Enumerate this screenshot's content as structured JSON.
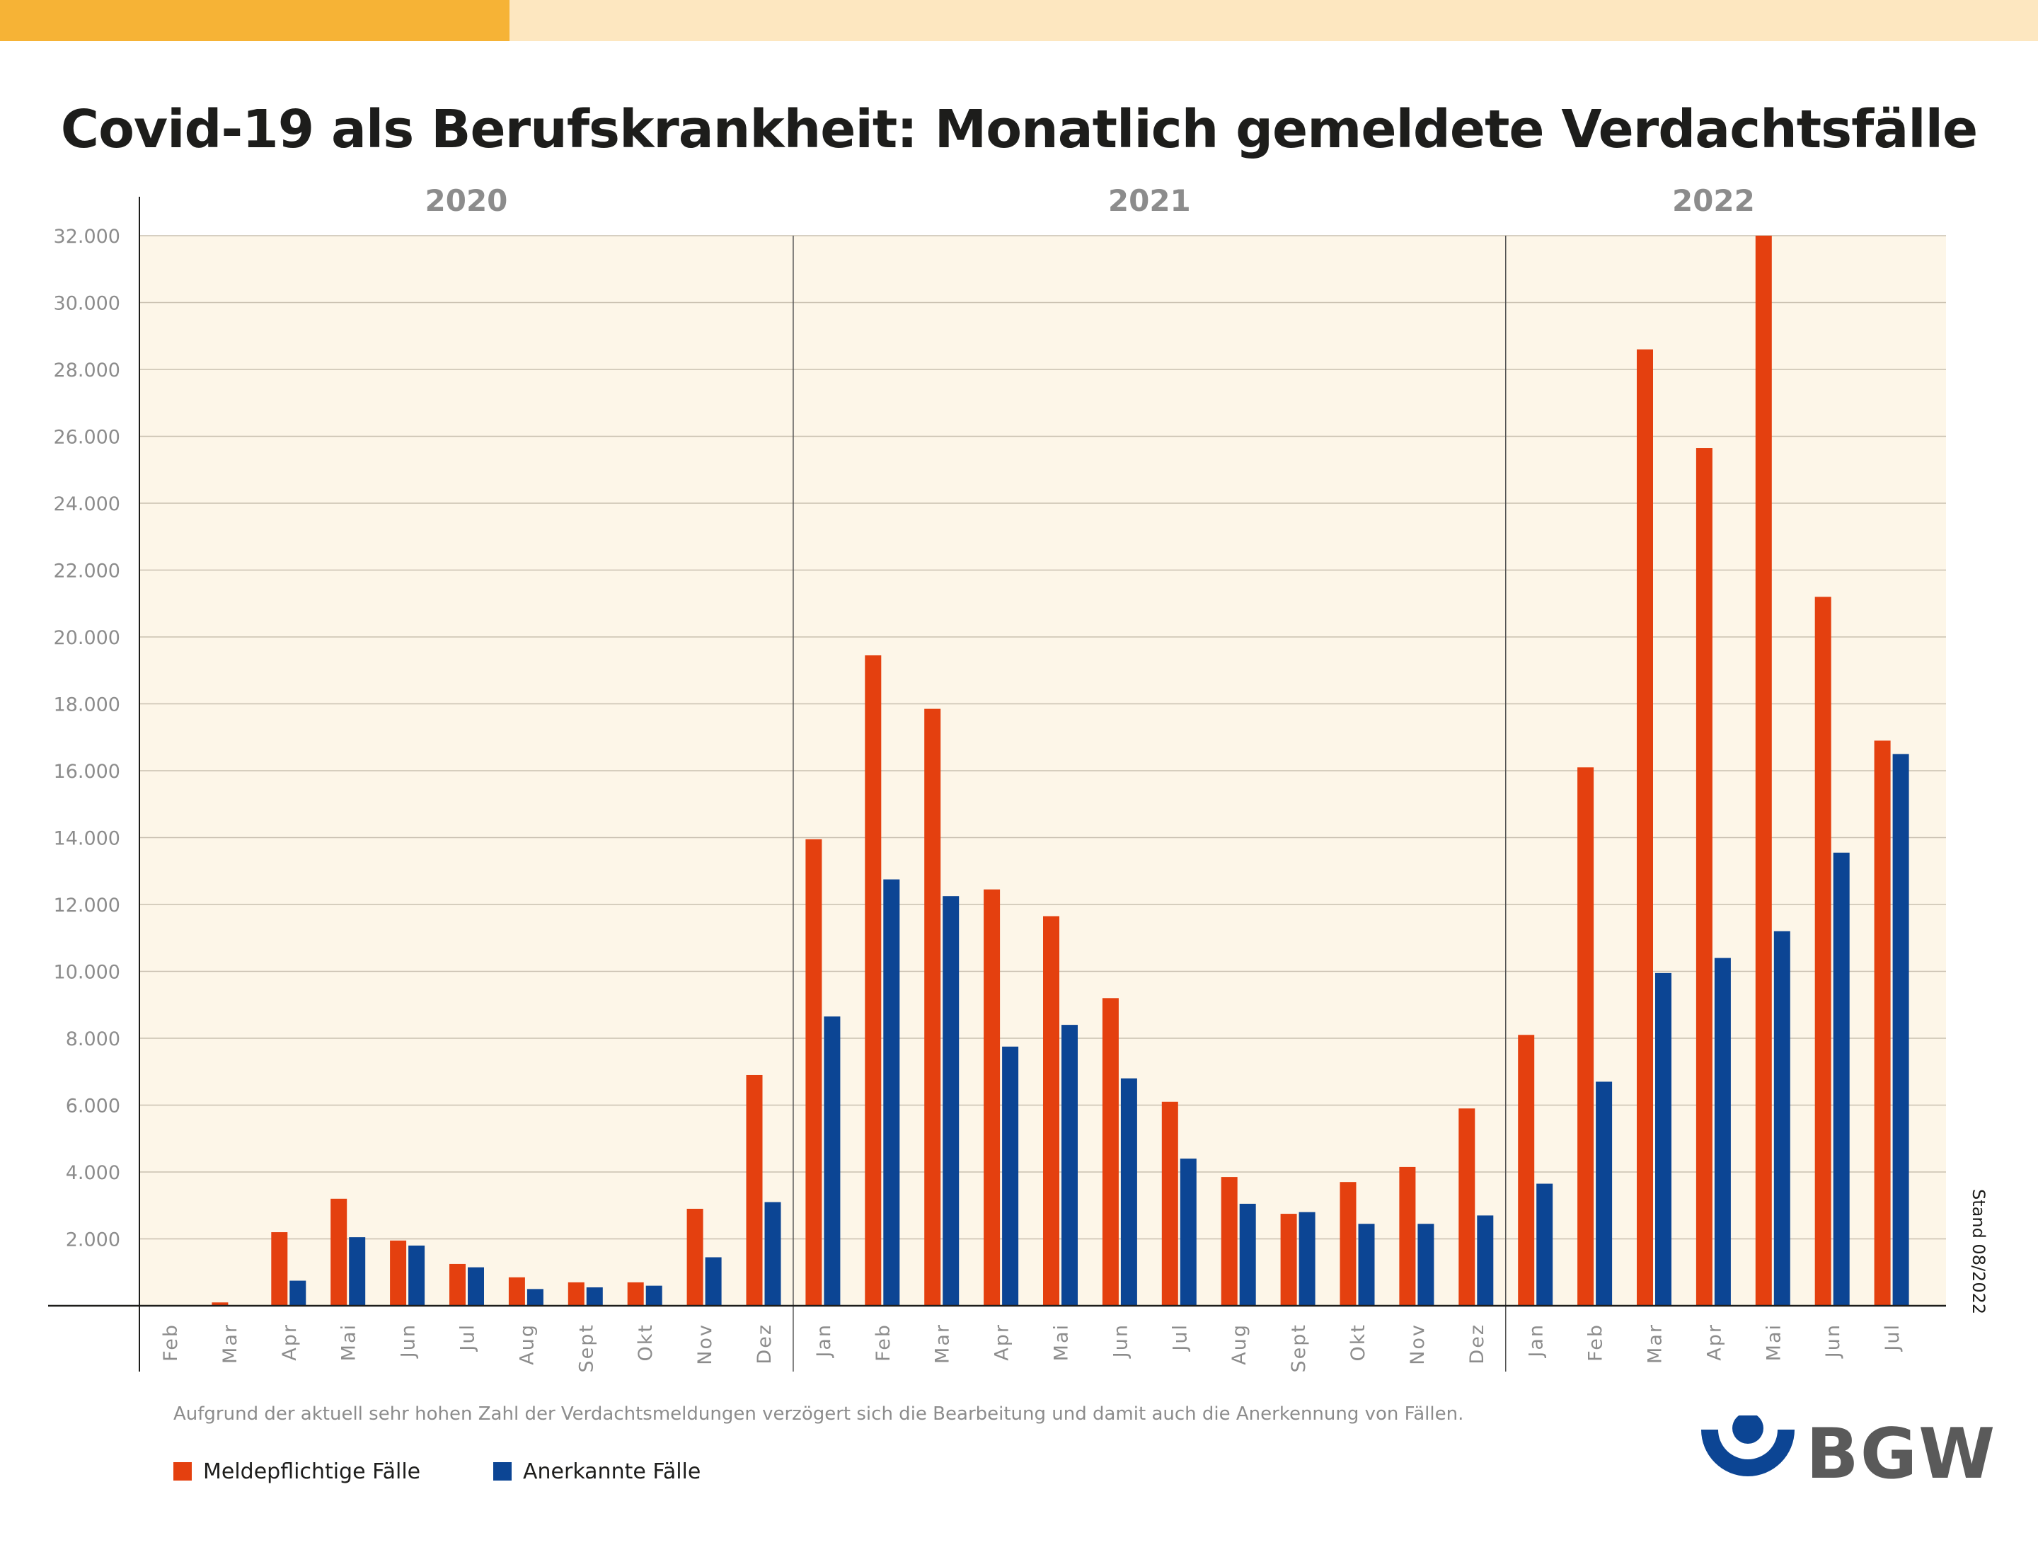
{
  "title": "Covid-19 als Berufskrankheit: Monatlich gemeldete Verdachtsfälle",
  "note": "Aufgrund der aktuell sehr hohen Zahl der Verdachtsmeldungen verzögert sich die Bearbeitung und damit auch die Anerkennung von Fällen.",
  "stand": "Stand 08/2022",
  "logo": {
    "text": "BGW"
  },
  "legend": [
    {
      "label": "Meldepflichtige Fälle",
      "color": "#e4400f"
    },
    {
      "label": "Anerkannte Fälle",
      "color": "#0c4594"
    }
  ],
  "colors": {
    "plot_background": "#fdf6e8",
    "grid": "#c9c0b0",
    "axis_label": "#8c8c8c",
    "year_label": "#8c8c8c",
    "top_bar_left": "#f6b336",
    "top_bar_right": "#fde7c0"
  },
  "chart_data": {
    "type": "bar",
    "title": "Covid-19 als Berufskrankheit: Monatlich gemeldete Verdachtsfälle",
    "xlabel": "",
    "ylabel": "",
    "ylim": [
      0,
      32000
    ],
    "yticks": [
      2000,
      4000,
      6000,
      8000,
      10000,
      12000,
      14000,
      16000,
      18000,
      20000,
      22000,
      24000,
      26000,
      28000,
      30000,
      32000
    ],
    "ytick_labels": [
      "2.000",
      "4.000",
      "6.000",
      "8.000",
      "10.000",
      "12.000",
      "14.000",
      "16.000",
      "18.000",
      "20.000",
      "22.000",
      "24.000",
      "26.000",
      "28.000",
      "30.000",
      "32.000"
    ],
    "grid": true,
    "year_groups": [
      {
        "year": "2020",
        "start": 0,
        "count": 11
      },
      {
        "year": "2021",
        "start": 11,
        "count": 12
      },
      {
        "year": "2022",
        "start": 23,
        "count": 7
      }
    ],
    "categories": [
      "Feb",
      "Mar",
      "Apr",
      "Mai",
      "Jun",
      "Jul",
      "Aug",
      "Sept",
      "Okt",
      "Nov",
      "Dez",
      "Jan",
      "Feb",
      "Mar",
      "Apr",
      "Mai",
      "Jun",
      "Jul",
      "Aug",
      "Sept",
      "Okt",
      "Nov",
      "Dez",
      "Jan",
      "Feb",
      "Mar",
      "Apr",
      "Mai",
      "Jun",
      "Jul"
    ],
    "series": [
      {
        "name": "Meldepflichtige Fälle",
        "color": "#e4400f",
        "values": [
          0,
          100,
          2200,
          3200,
          1950,
          1250,
          850,
          700,
          700,
          2900,
          6900,
          13950,
          19450,
          17850,
          12450,
          11650,
          9200,
          6100,
          3850,
          2750,
          3700,
          4150,
          5900,
          8100,
          16100,
          28600,
          25650,
          32000,
          21200,
          16900
        ]
      },
      {
        "name": "Anerkannte Fälle",
        "color": "#0c4594",
        "values": [
          0,
          0,
          750,
          2050,
          1800,
          1150,
          500,
          550,
          600,
          1450,
          3100,
          8650,
          12750,
          12250,
          7750,
          8400,
          6800,
          4400,
          3050,
          2800,
          2450,
          2450,
          2700,
          3650,
          6700,
          9950,
          10400,
          11200,
          13550,
          16500
        ]
      }
    ]
  }
}
